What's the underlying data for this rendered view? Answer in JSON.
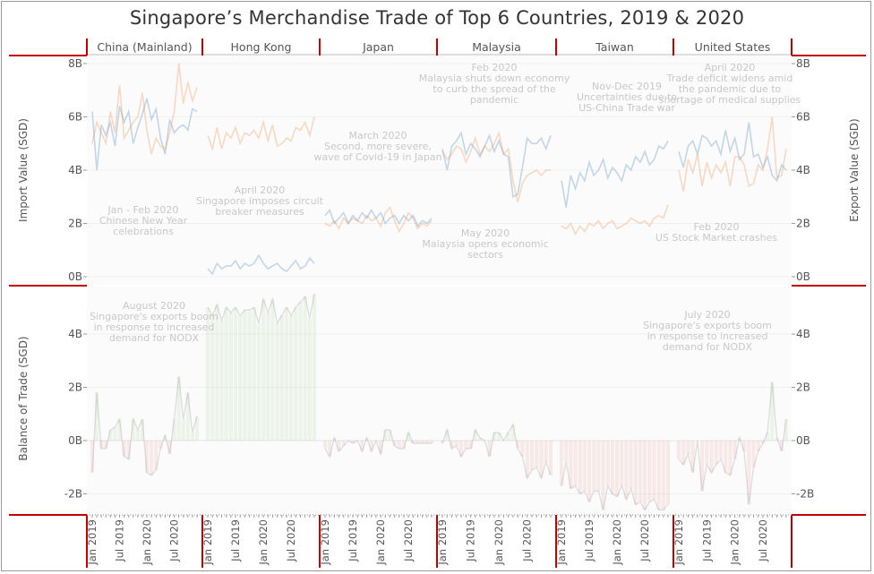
{
  "title": "Singapore’s Merchandise Trade of Top 6 Countries, 2019 & 2020",
  "axes": {
    "import_label": "Import Value (SGD)",
    "export_label": "Export Value (SGD)",
    "balance_label": "Balance of Trade (SGD)",
    "top_ticks": [
      "8B",
      "6B",
      "4B",
      "2B",
      "0B"
    ],
    "bottom_ticks": [
      "4B",
      "2B",
      "0B",
      "-2B"
    ],
    "x_ticks": [
      "Jan 2019",
      "Jul 2019",
      "Jan 2020",
      "Jul 2020"
    ]
  },
  "colors": {
    "import": "#2e75b6",
    "export": "#ed7d31",
    "surplus": "#70ad47",
    "deficit": "#e05050",
    "separator": "#c00000",
    "axis_text": "#555555"
  },
  "annotations": [
    {
      "text": "Jan - Feb 2020\nChinese New Year\ncelebrations",
      "panel": "China (Mainland)",
      "chart": "top"
    },
    {
      "text": "August 2020\nSingapore's exports boom\nin response to increased\ndemand for NODX",
      "panel": "China (Mainland)",
      "chart": "bottom"
    },
    {
      "text": "April 2020\nSingapore imposes circuit\nbreaker measures",
      "panel": "Hong Kong",
      "chart": "top"
    },
    {
      "text": "March 2020\nSecond, more severe,\nwave of Covid-19 in Japan",
      "panel": "Japan",
      "chart": "top"
    },
    {
      "text": "Feb 2020\nMalaysia shuts down economy\nto curb the spread of the\npandemic",
      "panel": "Malaysia",
      "chart": "top"
    },
    {
      "text": "May 2020\nMalaysia opens economic\nsectors",
      "panel": "Malaysia",
      "chart": "top"
    },
    {
      "text": "Nov-Dec 2019\nUncertainties due to\nUS-China Trade war",
      "panel": "Taiwan",
      "chart": "top"
    },
    {
      "text": "April 2020\nTrade deficit widens amid\nthe pandemic due to\nshortage of medical supplies",
      "panel": "United States",
      "chart": "top"
    },
    {
      "text": "Feb 2020\nUS Stock Market crashes",
      "panel": "United States",
      "chart": "top"
    },
    {
      "text": "July 2020\nSingapore's exports boom\nin response to increased\ndemand for NODX",
      "panel": "United States",
      "chart": "bottom"
    }
  ],
  "chart_data": {
    "type": "line",
    "title": "Singapore’s Merchandise Trade of Top 6 Countries, 2019 & 2020",
    "x": [
      "Jan 2019",
      "Feb 2019",
      "Mar 2019",
      "Apr 2019",
      "May 2019",
      "Jun 2019",
      "Jul 2019",
      "Aug 2019",
      "Sep 2019",
      "Oct 2019",
      "Nov 2019",
      "Dec 2019",
      "Jan 2020",
      "Feb 2020",
      "Mar 2020",
      "Apr 2020",
      "May 2020",
      "Jun 2020",
      "Jul 2020",
      "Aug 2020",
      "Sep 2020",
      "Oct 2020",
      "Nov 2020",
      "Dec 2020"
    ],
    "ylabel_left_top": "Import Value (SGD)",
    "ylabel_right_top": "Export Value (SGD)",
    "ylabel_bottom": "Balance of Trade (SGD)",
    "ylim_top": [
      0,
      8.5
    ],
    "ylim_bottom": [
      -2.7,
      5.4
    ],
    "units": "SGD billions",
    "panels": [
      {
        "name": "China (Mainland)",
        "import": [
          6.2,
          4.0,
          5.7,
          5.3,
          5.8,
          4.9,
          6.4,
          5.8,
          6.2,
          5.0,
          5.6,
          6.1,
          6.7,
          5.9,
          6.3,
          5.2,
          4.6,
          5.9,
          5.4,
          5.6,
          5.7,
          5.5,
          6.3,
          6.2
        ],
        "export": [
          5.0,
          5.8,
          5.4,
          5.0,
          6.2,
          5.4,
          7.2,
          5.2,
          5.5,
          5.8,
          6.0,
          6.9,
          5.5,
          4.6,
          5.2,
          4.9,
          4.8,
          5.4,
          6.2,
          8.0,
          6.5,
          7.3,
          6.6,
          7.1
        ]
      },
      {
        "name": "Hong Kong",
        "import": [
          0.3,
          0.1,
          0.5,
          0.3,
          0.4,
          0.4,
          0.6,
          0.3,
          0.5,
          0.4,
          0.5,
          0.8,
          0.5,
          0.3,
          0.4,
          0.5,
          0.3,
          0.2,
          0.4,
          0.6,
          0.3,
          0.4,
          0.7,
          0.5
        ],
        "export": [
          5.3,
          4.8,
          5.6,
          4.8,
          5.4,
          5.2,
          5.6,
          5.0,
          5.4,
          5.3,
          5.5,
          5.2,
          5.8,
          5.1,
          5.7,
          4.9,
          5.0,
          5.2,
          5.1,
          5.6,
          5.5,
          5.8,
          5.3,
          6.0
        ]
      },
      {
        "name": "Japan",
        "import": [
          2.3,
          2.5,
          2.0,
          2.2,
          2.4,
          2.0,
          2.3,
          2.1,
          2.4,
          2.2,
          2.5,
          2.2,
          2.4,
          2.0,
          2.2,
          2.3,
          2.0,
          2.3,
          2.1,
          2.3,
          1.9,
          2.1,
          2.0,
          2.2
        ],
        "export": [
          2.0,
          1.9,
          2.1,
          1.8,
          2.2,
          2.0,
          2.2,
          2.1,
          2.0,
          2.3,
          2.1,
          2.2,
          1.9,
          2.4,
          2.6,
          2.1,
          1.7,
          2.0,
          2.4,
          2.2,
          1.8,
          2.0,
          1.9,
          2.1
        ]
      },
      {
        "name": "Malaysia",
        "import": [
          4.8,
          4.0,
          4.9,
          5.1,
          5.4,
          4.6,
          5.0,
          4.8,
          4.5,
          4.9,
          5.3,
          4.7,
          5.1,
          4.6,
          4.5,
          3.0,
          3.1,
          4.1,
          5.2,
          5.0,
          5.0,
          5.2,
          4.8,
          5.3
        ],
        "export": [
          4.7,
          4.4,
          4.6,
          4.9,
          4.8,
          4.3,
          4.7,
          5.2,
          4.6,
          4.9,
          4.7,
          5.0,
          5.4,
          4.6,
          4.8,
          3.6,
          2.8,
          3.5,
          3.8,
          3.9,
          4.0,
          3.8,
          4.0,
          4.0
        ]
      },
      {
        "name": "Taiwan",
        "import": [
          3.6,
          2.6,
          3.8,
          3.3,
          3.9,
          3.6,
          4.3,
          3.8,
          4.0,
          4.4,
          3.7,
          4.1,
          3.9,
          3.6,
          4.2,
          4.0,
          4.5,
          4.3,
          4.7,
          4.2,
          4.4,
          4.9,
          4.8,
          5.1
        ],
        "export": [
          1.9,
          1.8,
          2.0,
          1.6,
          1.9,
          1.7,
          2.0,
          1.9,
          2.1,
          1.8,
          2.0,
          2.1,
          1.8,
          1.9,
          2.0,
          2.2,
          2.1,
          2.0,
          2.1,
          1.9,
          2.2,
          2.3,
          2.2,
          2.7
        ]
      },
      {
        "name": "United States",
        "import": [
          4.7,
          4.1,
          4.9,
          5.1,
          4.6,
          5.3,
          5.2,
          4.9,
          5.1,
          4.6,
          5.5,
          4.7,
          5.2,
          4.4,
          4.6,
          5.8,
          4.5,
          4.6,
          4.1,
          4.5,
          3.8,
          3.6,
          4.2,
          4.0
        ],
        "export": [
          4.0,
          3.2,
          4.4,
          3.9,
          4.6,
          3.4,
          4.3,
          3.7,
          4.2,
          3.9,
          4.3,
          3.4,
          4.5,
          4.5,
          4.2,
          3.4,
          3.5,
          4.2,
          4.0,
          4.8,
          6.0,
          3.7,
          3.8,
          4.8
        ]
      }
    ]
  }
}
